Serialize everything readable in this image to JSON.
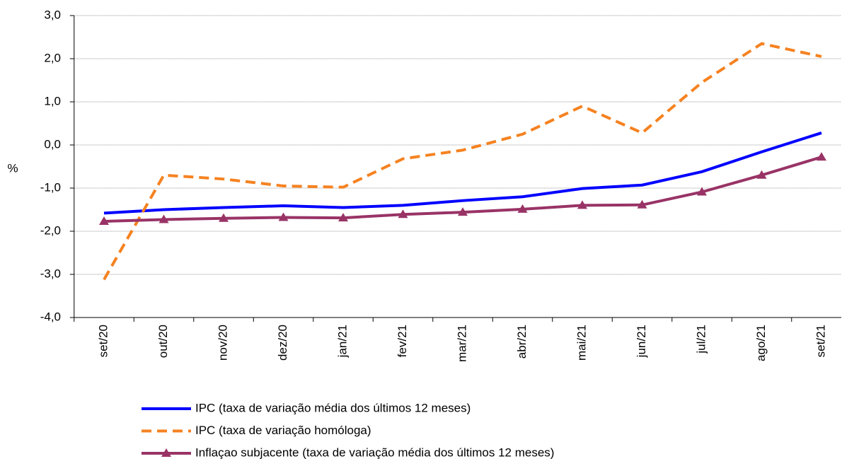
{
  "chart_data": {
    "type": "line",
    "ylabel": "%",
    "categories": [
      "set/20",
      "out/20",
      "nov/20",
      "dez/20",
      "jan/21",
      "fev/21",
      "mar/21",
      "abr/21",
      "mai/21",
      "jun/21",
      "jul/21",
      "ago/21",
      "set/21"
    ],
    "series": [
      {
        "name": "IPC (taxa de variação média dos últimos 12 meses)",
        "color": "#0000ff",
        "style": "solid",
        "values": [
          -1.58,
          -1.5,
          -1.45,
          -1.41,
          -1.45,
          -1.4,
          -1.29,
          -1.2,
          -1.01,
          -0.93,
          -0.62,
          -0.16,
          0.28
        ]
      },
      {
        "name": "IPC (taxa de variação homóloga)",
        "color": "#f58220",
        "style": "dashed",
        "values": [
          -3.12,
          -0.7,
          -0.79,
          -0.95,
          -0.98,
          -0.32,
          -0.12,
          0.25,
          0.9,
          0.28,
          1.45,
          2.35,
          2.05
        ]
      },
      {
        "name": "Inflaçao subjacente (taxa de variação média dos últimos 12 meses)",
        "color": "#993366",
        "style": "solid",
        "marker": "triangle",
        "values": [
          -1.77,
          -1.73,
          -1.7,
          -1.68,
          -1.69,
          -1.61,
          -1.56,
          -1.49,
          -1.4,
          -1.39,
          -1.09,
          -0.7,
          -0.28
        ]
      }
    ],
    "ylim": [
      -4,
      3
    ],
    "yticks": [
      {
        "value": -4,
        "label": "-4,0"
      },
      {
        "value": -3,
        "label": "-3,0"
      },
      {
        "value": -2,
        "label": "-2,0"
      },
      {
        "value": -1,
        "label": "-1,0"
      },
      {
        "value": 0,
        "label": "0,0"
      },
      {
        "value": 1,
        "label": "1,0"
      },
      {
        "value": 2,
        "label": "2,0"
      },
      {
        "value": 3,
        "label": "3,0"
      }
    ],
    "grid": true
  }
}
